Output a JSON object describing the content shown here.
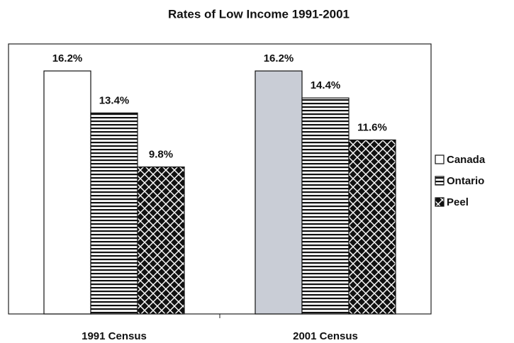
{
  "chart_data": {
    "type": "bar",
    "title": "Rates of Low Income 1991-2001",
    "categories": [
      "1991 Census",
      "2001 Census"
    ],
    "series": [
      {
        "name": "Canada",
        "color": "#ffffff",
        "colors": [
          "#ffffff",
          "#c9cdd6"
        ],
        "pattern": "none",
        "values": [
          16.2,
          16.2
        ],
        "value_labels": [
          "16.2%",
          "16.2%"
        ]
      },
      {
        "name": "Ontario",
        "color": "#000000",
        "pattern": "horizontal-lines",
        "values": [
          13.4,
          14.4
        ],
        "value_labels": [
          "13.4%",
          "14.4%"
        ]
      },
      {
        "name": "Peel",
        "color": "#000000",
        "pattern": "diamonds",
        "values": [
          9.8,
          11.6
        ],
        "value_labels": [
          "9.8%",
          "11.6%"
        ]
      }
    ],
    "ylim": [
      0,
      18
    ],
    "legend": "right"
  }
}
